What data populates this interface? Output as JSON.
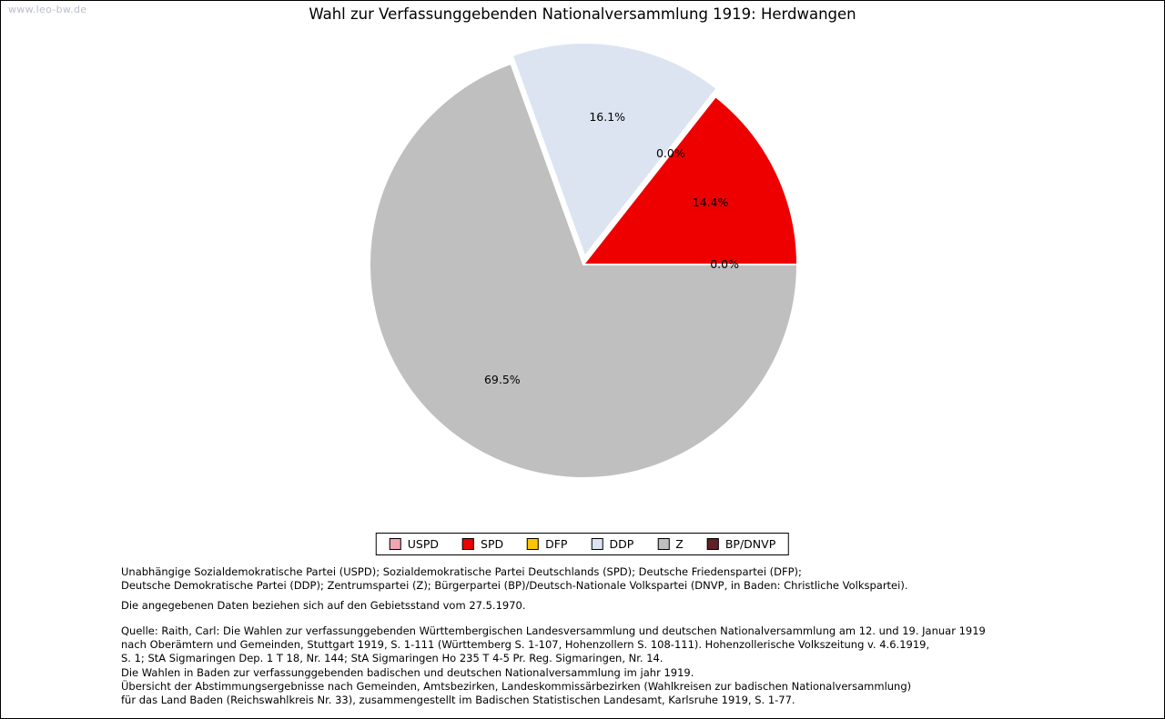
{
  "watermark": "www.leo-bw.de",
  "title": "Wahl zur Verfassunggebenden Nationalversammlung 1919: Herdwangen",
  "chart_data": {
    "type": "pie",
    "title": "Wahl zur Verfassunggebenden Nationalversammlung 1919: Herdwangen",
    "unit": "percent",
    "start_angle_deg": 0,
    "direction": "counterclockwise",
    "legend_position": "bottom",
    "slices": [
      {
        "party": "USPD",
        "value": 0.0,
        "label": "0.0%",
        "label_shown": true,
        "color": "#f1a6b2",
        "exploded": false
      },
      {
        "party": "SPD",
        "value": 14.4,
        "label": "14.4%",
        "label_shown": true,
        "color": "#ee0000",
        "exploded": false
      },
      {
        "party": "DFP",
        "value": 0.0,
        "label": "0.0%",
        "label_shown": true,
        "color": "#fdc500",
        "exploded": false
      },
      {
        "party": "DDP",
        "value": 16.1,
        "label": "16.1%",
        "label_shown": true,
        "color": "#dce4f2",
        "exploded": true
      },
      {
        "party": "Z",
        "value": 69.5,
        "label": "69.5%",
        "label_shown": true,
        "color": "#bfbfbf",
        "exploded": false
      },
      {
        "party": "BP/DNVP",
        "value": 0.0,
        "label": "",
        "label_shown": false,
        "color": "#5e2128",
        "exploded": false
      }
    ]
  },
  "footnotes": {
    "parties": [
      "Unabhängige Sozialdemokratische Partei (USPD); Sozialdemokratische Partei Deutschlands (SPD); Deutsche Friedenspartei (DFP);",
      "Deutsche Demokratische Partei (DDP); Zentrumspartei (Z); Bürgerpartei (BP)/Deutsch-Nationale Volkspartei (DNVP, in Baden: Christliche Volkspartei)."
    ],
    "gebietsstand": "Die angegebenen Daten beziehen sich auf den Gebietsstand vom 27.5.1970.",
    "quelle": [
      "Quelle: Raith, Carl: Die Wahlen zur verfassunggebenden Württembergischen Landesversammlung und deutschen Nationalversammlung am 12. und 19. Januar 1919",
      "nach Oberämtern und Gemeinden, Stuttgart 1919, S. 1-111 (Württemberg S. 1-107, Hohenzollern S. 108-111). Hohenzollerische Volkszeitung v. 4.6.1919,",
      "S. 1; StA Sigmaringen Dep. 1 T 18, Nr. 144; StA Sigmaringen Ho 235 T 4-5 Pr. Reg. Sigmaringen, Nr. 14.",
      "Die Wahlen in Baden zur verfassunggebenden badischen und deutschen Nationalversammlung im jahr 1919.",
      "Übersicht der Abstimmungsergebnisse nach Gemeinden, Amtsbezirken, Landeskommissärbezirken (Wahlkreisen zur badischen Nationalversammlung)",
      "für das Land Baden (Reichswahlkreis Nr. 33), zusammengestellt im Badischen Statistischen Landesamt, Karlsruhe 1919, S. 1-77."
    ]
  }
}
